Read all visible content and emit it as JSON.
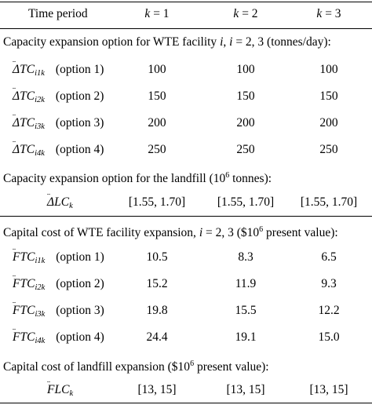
{
  "header": {
    "col0": "Time period",
    "col1": "k = 1",
    "col2": "k = 2",
    "col3": "k = 3"
  },
  "sections": [
    {
      "title": "Capacity expansion option for WTE facility i, i = 2, 3 (tonnes/day):",
      "rows": [
        {
          "sym": "ΔTC",
          "sub": "i1k",
          "opt": "(option 1)",
          "v": [
            "100",
            "100",
            "100"
          ]
        },
        {
          "sym": "ΔTC",
          "sub": "i2k",
          "opt": "(option 2)",
          "v": [
            "150",
            "150",
            "150"
          ]
        },
        {
          "sym": "ΔTC",
          "sub": "i3k",
          "opt": "(option 3)",
          "v": [
            "200",
            "200",
            "200"
          ]
        },
        {
          "sym": "ΔTC",
          "sub": "i4k",
          "opt": "(option 4)",
          "v": [
            "250",
            "250",
            "250"
          ]
        }
      ]
    },
    {
      "title": "Capacity expansion option for the landfill (10^6 tonnes):",
      "rows": [
        {
          "sym": "ΔLC",
          "sub": "k",
          "opt": "",
          "v": [
            "[1.55, 1.70]",
            "[1.55, 1.70]",
            "[1.55, 1.70]"
          ]
        }
      ]
    },
    {
      "title": "Capital cost of WTE facility expansion, i = 2, 3 ($10^6 present value):",
      "rows": [
        {
          "sym": "FTC",
          "sub": "i1k",
          "opt": "(option 1)",
          "v": [
            "10.5",
            "8.3",
            "6.5"
          ]
        },
        {
          "sym": "FTC",
          "sub": "i2k",
          "opt": "(option 2)",
          "v": [
            "15.2",
            "11.9",
            "9.3"
          ]
        },
        {
          "sym": "FTC",
          "sub": "i3k",
          "opt": "(option 3)",
          "v": [
            "19.8",
            "15.5",
            "12.2"
          ]
        },
        {
          "sym": "FTC",
          "sub": "i4k",
          "opt": "(option 4)",
          "v": [
            "24.4",
            "19.1",
            "15.0"
          ]
        }
      ]
    },
    {
      "title": "Capital cost of landfill expansion ($10^6 present value):",
      "rows": [
        {
          "sym": "FLC",
          "sub": "k",
          "opt": "",
          "v": [
            "[13, 15]",
            "[13, 15]",
            "[13, 15]"
          ]
        }
      ]
    }
  ]
}
